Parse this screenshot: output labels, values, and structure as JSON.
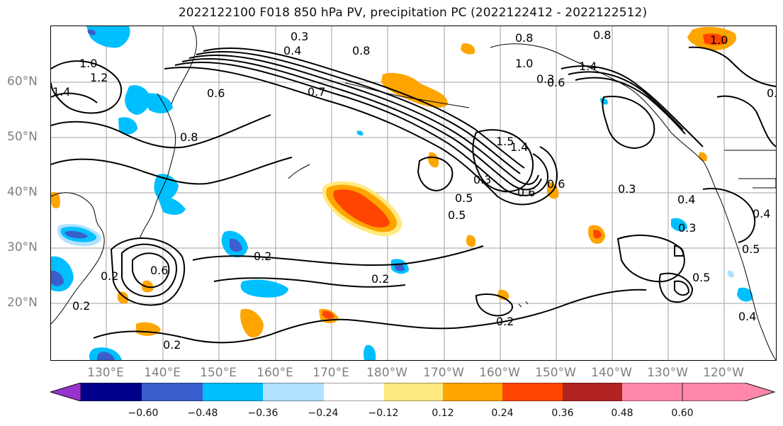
{
  "title": "2022122100 F018 850 hPa PV, precipitation PC (2022122412 - 2022122512)",
  "lat_labels": [
    "60°N",
    "50°N",
    "40°N",
    "30°N",
    "20°N"
  ],
  "lon_labels": [
    "130°E",
    "140°E",
    "150°E",
    "160°E",
    "170°E",
    "180°W",
    "170°W",
    "160°W",
    "150°W",
    "140°W",
    "130°W",
    "120°W"
  ],
  "colorbar": {
    "ticks": [
      "−0.60",
      "−0.48",
      "−0.36",
      "−0.24",
      "−0.12",
      "0.12",
      "0.24",
      "0.36",
      "0.48",
      "0.60"
    ],
    "colors": [
      "#9932cc",
      "#00008b",
      "#3a5fcd",
      "#00bfff",
      "#b0e2ff",
      "#ffffff",
      "#ffea80",
      "#ffa500",
      "#ff4500",
      "#b22222",
      "#ff88aa"
    ]
  },
  "contour_labels": [
    "0.3",
    "0.4",
    "0.8",
    "1.0",
    "1.2",
    "1.4",
    "0.6",
    "0.7",
    "0.8",
    "1.0",
    "1.5",
    "1.4",
    "0.8",
    "0.6",
    "0.3",
    "0.5",
    "0.2",
    "0.2",
    "0.2",
    "0.2",
    "0.2",
    "0.4",
    "0.3",
    "0.4",
    "0.5",
    "0.2",
    "0.4",
    "0.3",
    "0.5",
    "0.6",
    "0.6",
    "1.0",
    "1.4",
    "0.8",
    "0.5",
    "0.6",
    "0.3",
    "0.4"
  ]
}
